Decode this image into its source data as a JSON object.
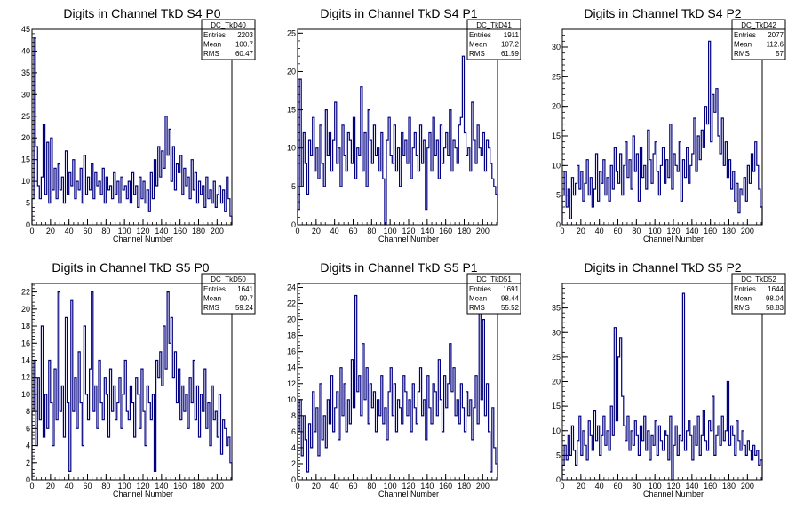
{
  "colors": {
    "hist": "#000080",
    "axis": "#000000",
    "background": "#ffffff"
  },
  "chart_data": [
    {
      "type": "bar",
      "title": "Digits in Channel TkD S4 P0",
      "xlabel": "Channel Number",
      "ylabel": "",
      "xlim": [
        0,
        216
      ],
      "ylim": [
        0,
        45
      ],
      "xticks": [
        0,
        20,
        40,
        60,
        80,
        100,
        120,
        140,
        160,
        180,
        200
      ],
      "yticks": [
        0,
        5,
        10,
        15,
        20,
        25,
        30,
        35,
        40,
        45
      ],
      "stats": {
        "name": "DC_TkD40",
        "entries": "2203",
        "mean": "100.7",
        "rms": "60.47"
      },
      "x": [
        0,
        2,
        4,
        6,
        8,
        10,
        12,
        14,
        16,
        18,
        20,
        22,
        24,
        26,
        28,
        30,
        32,
        34,
        36,
        38,
        40,
        42,
        44,
        46,
        48,
        50,
        52,
        54,
        56,
        58,
        60,
        62,
        64,
        66,
        68,
        70,
        72,
        74,
        76,
        78,
        80,
        82,
        84,
        86,
        88,
        90,
        92,
        94,
        96,
        98,
        100,
        102,
        104,
        106,
        108,
        110,
        112,
        114,
        116,
        118,
        120,
        122,
        124,
        126,
        128,
        130,
        132,
        134,
        136,
        138,
        140,
        142,
        144,
        146,
        148,
        150,
        152,
        154,
        156,
        158,
        160,
        162,
        164,
        166,
        168,
        170,
        172,
        174,
        176,
        178,
        180,
        182,
        184,
        186,
        188,
        190,
        192,
        194,
        196,
        198,
        200,
        202,
        204,
        206,
        208,
        210,
        212,
        214
      ],
      "values": [
        6,
        43,
        18,
        9,
        6,
        11,
        23,
        7,
        19,
        5,
        20,
        8,
        13,
        6,
        14,
        8,
        11,
        5,
        17,
        7,
        12,
        9,
        15,
        6,
        10,
        8,
        13,
        5,
        16,
        7,
        11,
        8,
        14,
        6,
        12,
        9,
        10,
        7,
        13,
        5,
        11,
        8,
        9,
        6,
        12,
        7,
        10,
        5,
        11,
        8,
        9,
        6,
        10,
        5,
        12,
        7,
        9,
        4,
        11,
        6,
        10,
        5,
        8,
        3,
        12,
        6,
        15,
        9,
        18,
        11,
        17,
        13,
        25,
        16,
        22,
        10,
        18,
        8,
        14,
        12,
        16,
        7,
        13,
        9,
        11,
        6,
        15,
        8,
        12,
        5,
        10,
        7,
        9,
        4,
        11,
        6,
        8,
        5,
        10,
        4,
        7,
        9,
        5,
        8,
        3,
        11,
        6,
        2
      ]
    },
    {
      "type": "bar",
      "title": "Digits in Channel TkD S4 P1",
      "xlabel": "Channel Number",
      "ylabel": "",
      "xlim": [
        0,
        216
      ],
      "ylim": [
        0,
        25.5
      ],
      "xticks": [
        0,
        20,
        40,
        60,
        80,
        100,
        120,
        140,
        160,
        180,
        200
      ],
      "yticks": [
        0,
        5,
        10,
        15,
        20,
        25
      ],
      "stats": {
        "name": "DC_TkD41",
        "entries": "1911",
        "mean": "107.2",
        "rms": "61.59"
      },
      "x": [
        0,
        2,
        4,
        6,
        8,
        10,
        12,
        14,
        16,
        18,
        20,
        22,
        24,
        26,
        28,
        30,
        32,
        34,
        36,
        38,
        40,
        42,
        44,
        46,
        48,
        50,
        52,
        54,
        56,
        58,
        60,
        62,
        64,
        66,
        68,
        70,
        72,
        74,
        76,
        78,
        80,
        82,
        84,
        86,
        88,
        90,
        92,
        94,
        96,
        98,
        100,
        102,
        104,
        106,
        108,
        110,
        112,
        114,
        116,
        118,
        120,
        122,
        124,
        126,
        128,
        130,
        132,
        134,
        136,
        138,
        140,
        142,
        144,
        146,
        148,
        150,
        152,
        154,
        156,
        158,
        160,
        162,
        164,
        166,
        168,
        170,
        172,
        174,
        176,
        178,
        180,
        182,
        184,
        186,
        188,
        190,
        192,
        194,
        196,
        198,
        200,
        202,
        204,
        206,
        208,
        210,
        212,
        214
      ],
      "values": [
        2,
        19,
        5,
        12,
        8,
        4,
        11,
        9,
        14,
        7,
        10,
        6,
        13,
        8,
        5,
        15,
        9,
        12,
        7,
        11,
        16,
        8,
        10,
        5,
        13,
        9,
        7,
        12,
        11,
        8,
        14,
        6,
        10,
        9,
        18,
        7,
        12,
        5,
        15,
        11,
        8,
        13,
        9,
        10,
        7,
        12,
        6,
        0,
        11,
        14,
        9,
        8,
        13,
        7,
        10,
        5,
        12,
        9,
        11,
        8,
        14,
        6,
        10,
        12,
        9,
        7,
        13,
        8,
        11,
        2,
        10,
        12,
        7,
        14,
        9,
        11,
        6,
        13,
        8,
        10,
        12,
        9,
        15,
        7,
        11,
        10,
        8,
        13,
        14,
        22,
        12,
        9,
        10,
        7,
        16,
        11,
        8,
        13,
        10,
        9,
        12,
        7,
        11,
        10,
        8,
        6,
        5,
        4
      ]
    },
    {
      "type": "bar",
      "title": "Digits in Channel TkD S4 P2",
      "xlabel": "Channel Number",
      "ylabel": "",
      "xlim": [
        0,
        216
      ],
      "ylim": [
        0,
        33
      ],
      "xticks": [
        0,
        20,
        40,
        60,
        80,
        100,
        120,
        140,
        160,
        180,
        200
      ],
      "yticks": [
        0,
        5,
        10,
        15,
        20,
        25,
        30
      ],
      "stats": {
        "name": "DC_TkD42",
        "entries": "2077",
        "mean": "112.6",
        "rms": "57"
      },
      "x": [
        0,
        2,
        4,
        6,
        8,
        10,
        12,
        14,
        16,
        18,
        20,
        22,
        24,
        26,
        28,
        30,
        32,
        34,
        36,
        38,
        40,
        42,
        44,
        46,
        48,
        50,
        52,
        54,
        56,
        58,
        60,
        62,
        64,
        66,
        68,
        70,
        72,
        74,
        76,
        78,
        80,
        82,
        84,
        86,
        88,
        90,
        92,
        94,
        96,
        98,
        100,
        102,
        104,
        106,
        108,
        110,
        112,
        114,
        116,
        118,
        120,
        122,
        124,
        126,
        128,
        130,
        132,
        134,
        136,
        138,
        140,
        142,
        144,
        146,
        148,
        150,
        152,
        154,
        156,
        158,
        160,
        162,
        164,
        166,
        168,
        170,
        172,
        174,
        176,
        178,
        180,
        182,
        184,
        186,
        188,
        190,
        192,
        194,
        196,
        198,
        200,
        202,
        204,
        206,
        208,
        210,
        212,
        214
      ],
      "values": [
        5,
        9,
        3,
        6,
        1,
        8,
        5,
        7,
        10,
        6,
        9,
        4,
        7,
        11,
        5,
        8,
        3,
        6,
        12,
        4,
        9,
        7,
        11,
        5,
        8,
        4,
        10,
        6,
        13,
        9,
        7,
        12,
        5,
        10,
        14,
        8,
        11,
        6,
        15,
        9,
        12,
        4,
        13,
        8,
        10,
        6,
        16,
        11,
        7,
        12,
        14,
        9,
        5,
        10,
        13,
        7,
        11,
        8,
        17,
        6,
        12,
        10,
        9,
        14,
        4,
        11,
        8,
        13,
        7,
        10,
        12,
        18,
        9,
        15,
        11,
        16,
        13,
        20,
        17,
        31,
        14,
        22,
        19,
        23,
        15,
        12,
        18,
        10,
        14,
        8,
        11,
        6,
        9,
        4,
        7,
        2,
        6,
        5,
        8,
        4,
        10,
        7,
        12,
        9,
        14,
        10,
        6,
        3
      ]
    },
    {
      "type": "bar",
      "title": "Digits in Channel TkD S5 P0",
      "xlabel": "Channel Number",
      "ylabel": "",
      "xlim": [
        0,
        216
      ],
      "ylim": [
        0,
        23
      ],
      "xticks": [
        0,
        20,
        40,
        60,
        80,
        100,
        120,
        140,
        160,
        180,
        200
      ],
      "yticks": [
        0,
        2,
        4,
        6,
        8,
        10,
        12,
        14,
        16,
        18,
        20,
        22
      ],
      "stats": {
        "name": "DC_TkD50",
        "entries": "1641",
        "mean": "99.7",
        "rms": "59.24"
      },
      "x": [
        0,
        2,
        4,
        6,
        8,
        10,
        12,
        14,
        16,
        18,
        20,
        22,
        24,
        26,
        28,
        30,
        32,
        34,
        36,
        38,
        40,
        42,
        44,
        46,
        48,
        50,
        52,
        54,
        56,
        58,
        60,
        62,
        64,
        66,
        68,
        70,
        72,
        74,
        76,
        78,
        80,
        82,
        84,
        86,
        88,
        90,
        92,
        94,
        96,
        98,
        100,
        102,
        104,
        106,
        108,
        110,
        112,
        114,
        116,
        118,
        120,
        122,
        124,
        126,
        128,
        130,
        132,
        134,
        136,
        138,
        140,
        142,
        144,
        146,
        148,
        150,
        152,
        154,
        156,
        158,
        160,
        162,
        164,
        166,
        168,
        170,
        172,
        174,
        176,
        178,
        180,
        182,
        184,
        186,
        188,
        190,
        192,
        194,
        196,
        198,
        200,
        202,
        204,
        206,
        208,
        210,
        212,
        214
      ],
      "values": [
        8,
        14,
        4,
        12,
        7,
        18,
        5,
        10,
        6,
        14,
        9,
        4,
        13,
        7,
        22,
        8,
        11,
        5,
        19,
        9,
        1,
        21,
        8,
        12,
        6,
        15,
        9,
        4,
        18,
        10,
        7,
        13,
        22,
        8,
        11,
        6,
        14,
        9,
        7,
        12,
        10,
        5,
        13,
        8,
        11,
        7,
        9,
        12,
        6,
        10,
        14,
        8,
        7,
        11,
        9,
        5,
        12,
        10,
        6,
        13,
        8,
        4,
        11,
        9,
        7,
        10,
        1,
        14,
        12,
        15,
        11,
        18,
        13,
        22,
        16,
        19,
        12,
        15,
        9,
        13,
        7,
        11,
        8,
        10,
        6,
        12,
        9,
        14,
        7,
        11,
        5,
        10,
        8,
        13,
        6,
        9,
        4,
        11,
        7,
        8,
        5,
        10,
        3,
        7,
        6,
        4,
        5,
        2
      ]
    },
    {
      "type": "bar",
      "title": "Digits in Channel TkD S5 P1",
      "xlabel": "Channel Number",
      "ylabel": "",
      "xlim": [
        0,
        216
      ],
      "ylim": [
        0,
        24.5
      ],
      "xticks": [
        0,
        20,
        40,
        60,
        80,
        100,
        120,
        140,
        160,
        180,
        200
      ],
      "yticks": [
        0,
        2,
        4,
        6,
        8,
        10,
        12,
        14,
        16,
        18,
        20,
        22,
        24
      ],
      "stats": {
        "name": "DC_TkD51",
        "entries": "1691",
        "mean": "98.44",
        "rms": "55.52"
      },
      "x": [
        0,
        2,
        4,
        6,
        8,
        10,
        12,
        14,
        16,
        18,
        20,
        22,
        24,
        26,
        28,
        30,
        32,
        34,
        36,
        38,
        40,
        42,
        44,
        46,
        48,
        50,
        52,
        54,
        56,
        58,
        60,
        62,
        64,
        66,
        68,
        70,
        72,
        74,
        76,
        78,
        80,
        82,
        84,
        86,
        88,
        90,
        92,
        94,
        96,
        98,
        100,
        102,
        104,
        106,
        108,
        110,
        112,
        114,
        116,
        118,
        120,
        122,
        124,
        126,
        128,
        130,
        132,
        134,
        136,
        138,
        140,
        142,
        144,
        146,
        148,
        150,
        152,
        154,
        156,
        158,
        160,
        162,
        164,
        166,
        168,
        170,
        172,
        174,
        176,
        178,
        180,
        182,
        184,
        186,
        188,
        190,
        192,
        194,
        196,
        198,
        200,
        202,
        204,
        206,
        208,
        210,
        212,
        214
      ],
      "values": [
        6,
        10,
        3,
        8,
        5,
        1,
        7,
        4,
        11,
        6,
        9,
        3,
        12,
        5,
        8,
        4,
        10,
        7,
        13,
        6,
        9,
        11,
        5,
        14,
        8,
        12,
        6,
        10,
        7,
        15,
        9,
        23,
        11,
        13,
        8,
        17,
        10,
        14,
        7,
        12,
        9,
        11,
        6,
        10,
        8,
        13,
        7,
        9,
        5,
        11,
        14,
        8,
        12,
        6,
        10,
        9,
        7,
        13,
        11,
        8,
        10,
        6,
        12,
        9,
        7,
        11,
        14,
        8,
        10,
        5,
        13,
        9,
        7,
        12,
        11,
        8,
        15,
        10,
        6,
        13,
        9,
        12,
        17,
        11,
        14,
        8,
        10,
        7,
        12,
        9,
        6,
        11,
        8,
        10,
        5,
        9,
        13,
        7,
        22,
        10,
        20,
        8,
        12,
        6,
        1,
        9,
        4,
        2
      ]
    },
    {
      "type": "bar",
      "title": "Digits in Channel TkD S5 P2",
      "xlabel": "Channel Number",
      "ylabel": "",
      "xlim": [
        0,
        216
      ],
      "ylim": [
        0,
        40
      ],
      "xticks": [
        0,
        20,
        40,
        60,
        80,
        100,
        120,
        140,
        160,
        180,
        200
      ],
      "yticks": [
        0,
        5,
        10,
        15,
        20,
        25,
        30,
        35
      ],
      "stats": {
        "name": "DC_TkD52",
        "entries": "1644",
        "mean": "98.04",
        "rms": "58.83"
      },
      "x": [
        0,
        2,
        4,
        6,
        8,
        10,
        12,
        14,
        16,
        18,
        20,
        22,
        24,
        26,
        28,
        30,
        32,
        34,
        36,
        38,
        40,
        42,
        44,
        46,
        48,
        50,
        52,
        54,
        56,
        58,
        60,
        62,
        64,
        66,
        68,
        70,
        72,
        74,
        76,
        78,
        80,
        82,
        84,
        86,
        88,
        90,
        92,
        94,
        96,
        98,
        100,
        102,
        104,
        106,
        108,
        110,
        112,
        114,
        116,
        118,
        120,
        122,
        124,
        126,
        128,
        130,
        132,
        134,
        136,
        138,
        140,
        142,
        144,
        146,
        148,
        150,
        152,
        154,
        156,
        158,
        160,
        162,
        164,
        166,
        168,
        170,
        172,
        174,
        176,
        178,
        180,
        182,
        184,
        186,
        188,
        190,
        192,
        194,
        196,
        198,
        200,
        202,
        204,
        206,
        208,
        210,
        212,
        214
      ],
      "values": [
        3,
        7,
        4,
        9,
        5,
        11,
        6,
        3,
        8,
        13,
        5,
        10,
        7,
        4,
        12,
        9,
        6,
        14,
        8,
        11,
        5,
        9,
        13,
        7,
        10,
        6,
        15,
        9,
        31,
        12,
        25,
        29,
        17,
        11,
        8,
        13,
        6,
        10,
        7,
        12,
        9,
        5,
        11,
        8,
        13,
        6,
        10,
        4,
        9,
        7,
        12,
        5,
        11,
        8,
        6,
        10,
        9,
        4,
        13,
        0,
        7,
        11,
        5,
        9,
        8,
        38,
        6,
        10,
        12,
        9,
        4,
        11,
        7,
        13,
        5,
        9,
        14,
        8,
        6,
        12,
        10,
        17,
        5,
        9,
        11,
        7,
        13,
        8,
        10,
        20,
        7,
        11,
        9,
        5,
        12,
        8,
        6,
        10,
        7,
        5,
        8,
        6,
        4,
        7,
        5,
        6,
        3,
        4
      ]
    }
  ]
}
